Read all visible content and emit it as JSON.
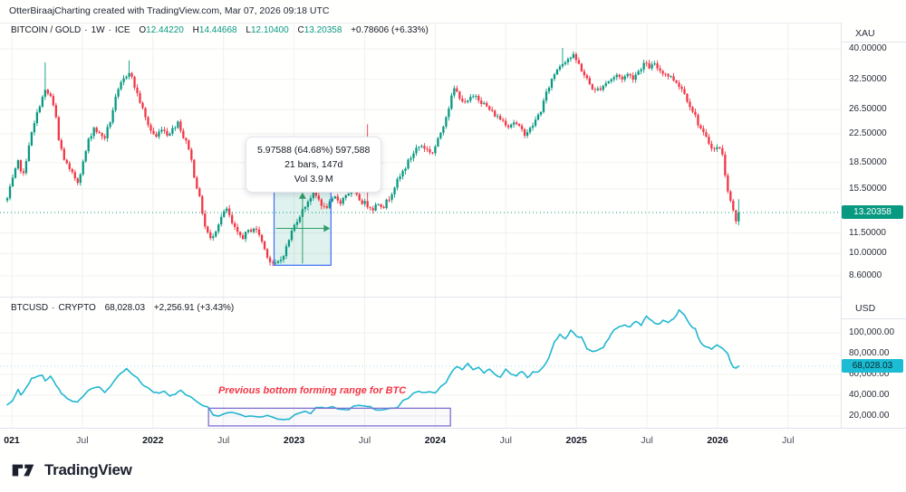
{
  "attribution": "OtterBiraajCharting created with TradingView.com, Mar 07, 2026 09:18 UTC",
  "top_pane": {
    "legend": {
      "symbol": "BITCOIN / GOLD",
      "sep": "·",
      "interval": "1W",
      "exchange": "ICE",
      "o_label": "O",
      "open": "12.44220",
      "h_label": "H",
      "high": "14.44668",
      "l_label": "L",
      "low": "12.10400",
      "c_label": "C",
      "close": "13.20358",
      "change": "+0.78606 (+6.33%)"
    },
    "unit": "XAU",
    "price_badge": "13.20358",
    "tooltip": {
      "line1": "5.97588 (64.68%) 597,588",
      "line2": "21 bars, 147d",
      "line3": "Vol 3.9 M"
    }
  },
  "bottom_pane": {
    "legend": {
      "symbol": "BTCUSD",
      "sep": "·",
      "exchange": "CRYPTO",
      "value": "68,028.03",
      "change": "+2,256.91 (+3.43%)"
    },
    "unit": "USD",
    "price_badge": "68,028.03",
    "annotation": "Previous bottom forming range for BTC"
  },
  "footer": {
    "logo_text": "TradingView"
  },
  "colors": {
    "up": "#089981",
    "down": "#f23645",
    "line": "#21b7d0",
    "grid": "#f1f0ec",
    "measure_fill": "rgba(8,153,129,0.13)",
    "measure_border": "#3b6ff7",
    "measure_arrow": "#2f9e68",
    "range_border": "#7e6fd0",
    "range_fill": "rgba(126,111,208,0.04)",
    "annotation_red": "#f23645",
    "badge_up_bg": "#089981",
    "badge_line_bg": "#1cbdd4"
  },
  "x_axis": {
    "ticks": [
      {
        "label": "021",
        "year": true
      },
      {
        "label": "Jul",
        "year": false
      },
      {
        "label": "2022",
        "year": true
      },
      {
        "label": "Jul",
        "year": false
      },
      {
        "label": "2023",
        "year": true
      },
      {
        "label": "Jul",
        "year": false
      },
      {
        "label": "2024",
        "year": true
      },
      {
        "label": "Jul",
        "year": false
      },
      {
        "label": "2025",
        "year": true
      },
      {
        "label": "Jul",
        "year": false
      },
      {
        "label": "2026",
        "year": true
      },
      {
        "label": "Jul",
        "year": false
      }
    ]
  },
  "chart_data": [
    {
      "type": "candlestick",
      "title": "BITCOIN / GOLD · 1W · ICE",
      "y_scale": "log",
      "y_axis_unit": "XAU",
      "x_range": [
        "2021-01",
        "2026-03"
      ],
      "ylim": [
        8.2,
        41.5
      ],
      "y_ticks": [
        40,
        32.5,
        26.5,
        22.5,
        18.5,
        15.5,
        11.5,
        10,
        8.6
      ],
      "y_tick_labels": [
        "40.00000",
        "32.50000",
        "26.50000",
        "22.50000",
        "18.50000",
        "15.50000",
        "11.50000",
        "10.00000",
        "8.60000"
      ],
      "last_price": 13.20358,
      "weeks": 271,
      "last": {
        "open": 12.4422,
        "high": 14.44668,
        "low": 12.104,
        "close": 13.20358
      },
      "close_keyframes": [
        [
          0,
          14.5
        ],
        [
          2,
          16.5
        ],
        [
          4,
          18.5
        ],
        [
          6,
          17.0
        ],
        [
          8,
          21.0
        ],
        [
          10,
          24.0
        ],
        [
          12,
          27.5
        ],
        [
          14,
          30.0
        ],
        [
          16,
          29.0
        ],
        [
          18,
          25.0
        ],
        [
          19,
          21.5
        ],
        [
          21,
          19.0
        ],
        [
          23,
          17.5
        ],
        [
          26,
          16.3
        ],
        [
          28,
          18.5
        ],
        [
          30,
          21.5
        ],
        [
          32,
          23.5
        ],
        [
          34,
          22.4
        ],
        [
          36,
          22.0
        ],
        [
          38,
          24.5
        ],
        [
          40,
          28.5
        ],
        [
          42,
          31.5
        ],
        [
          44,
          33.5
        ],
        [
          45,
          34.5
        ],
        [
          47,
          31.0
        ],
        [
          49,
          28.0
        ],
        [
          51,
          25.0
        ],
        [
          53,
          23.0
        ],
        [
          55,
          22.0
        ],
        [
          57,
          23.5
        ],
        [
          59,
          22.5
        ],
        [
          61,
          23.2
        ],
        [
          63,
          24.5
        ],
        [
          65,
          22.0
        ],
        [
          67,
          20.5
        ],
        [
          69,
          17.0
        ],
        [
          71,
          14.5
        ],
        [
          73,
          12.0
        ],
        [
          75,
          11.0
        ],
        [
          77,
          11.8
        ],
        [
          79,
          12.8
        ],
        [
          81,
          13.5
        ],
        [
          83,
          12.2
        ],
        [
          85,
          11.4
        ],
        [
          87,
          11.2
        ],
        [
          89,
          11.6
        ],
        [
          91,
          11.9
        ],
        [
          93,
          11.4
        ],
        [
          95,
          10.3
        ],
        [
          97,
          9.5
        ],
        [
          99,
          9.25
        ],
        [
          101,
          9.6
        ],
        [
          103,
          10.4
        ],
        [
          105,
          11.6
        ],
        [
          107,
          12.6
        ],
        [
          109,
          13.4
        ],
        [
          111,
          14.3
        ],
        [
          113,
          15.1
        ],
        [
          115,
          14.4
        ],
        [
          117,
          13.6
        ],
        [
          119,
          14.0
        ],
        [
          121,
          14.6
        ],
        [
          123,
          14.2
        ],
        [
          125,
          14.9
        ],
        [
          127,
          15.3
        ],
        [
          129,
          14.7
        ],
        [
          131,
          14.2
        ],
        [
          133,
          13.9
        ],
        [
          135,
          13.6
        ],
        [
          137,
          14.1
        ],
        [
          139,
          13.8
        ],
        [
          141,
          14.6
        ],
        [
          143,
          15.8
        ],
        [
          145,
          16.8
        ],
        [
          147,
          18.0
        ],
        [
          149,
          19.2
        ],
        [
          151,
          20.4
        ],
        [
          153,
          20.8
        ],
        [
          155,
          20.2
        ],
        [
          157,
          19.8
        ],
        [
          159,
          21.5
        ],
        [
          161,
          24.0
        ],
        [
          163,
          27.0
        ],
        [
          165,
          30.5
        ],
        [
          167,
          29.0
        ],
        [
          169,
          27.5
        ],
        [
          171,
          28.5
        ],
        [
          173,
          29.3
        ],
        [
          175,
          28.0
        ],
        [
          177,
          27.0
        ],
        [
          179,
          26.0
        ],
        [
          181,
          25.2
        ],
        [
          183,
          24.6
        ],
        [
          185,
          23.8
        ],
        [
          187,
          24.4
        ],
        [
          189,
          23.4
        ],
        [
          191,
          22.6
        ],
        [
          193,
          23.2
        ],
        [
          195,
          24.6
        ],
        [
          197,
          26.4
        ],
        [
          199,
          29.5
        ],
        [
          201,
          32.5
        ],
        [
          203,
          35.0
        ],
        [
          205,
          36.5
        ],
        [
          207,
          37.5
        ],
        [
          209,
          38.0
        ],
        [
          211,
          36.0
        ],
        [
          213,
          33.5
        ],
        [
          215,
          31.5
        ],
        [
          217,
          30.0
        ],
        [
          219,
          30.8
        ],
        [
          221,
          31.8
        ],
        [
          223,
          32.6
        ],
        [
          225,
          33.4
        ],
        [
          227,
          32.8
        ],
        [
          229,
          33.6
        ],
        [
          231,
          33.0
        ],
        [
          233,
          34.4
        ],
        [
          235,
          36.2
        ],
        [
          237,
          35.4
        ],
        [
          239,
          35.8
        ],
        [
          241,
          34.6
        ],
        [
          243,
          33.8
        ],
        [
          245,
          33.0
        ],
        [
          247,
          32.0
        ],
        [
          249,
          30.6
        ],
        [
          251,
          28.4
        ],
        [
          253,
          26.4
        ],
        [
          255,
          24.2
        ],
        [
          257,
          22.4
        ],
        [
          259,
          21.2
        ],
        [
          261,
          20.2
        ],
        [
          263,
          20.6
        ],
        [
          264,
          19.4
        ],
        [
          265,
          17.2
        ],
        [
          266,
          15.4
        ],
        [
          267,
          14.2
        ],
        [
          268,
          13.4
        ],
        [
          269,
          12.44
        ],
        [
          270,
          13.2
        ]
      ],
      "spikes": [
        {
          "week": 14,
          "high": 36.5,
          "down": false
        },
        {
          "week": 45,
          "high": 37.0,
          "down": false
        },
        {
          "week": 133,
          "high": 24.0,
          "down": true
        },
        {
          "week": 205,
          "high": 40.2,
          "down": false
        }
      ],
      "measure_tool": {
        "from_week": 98.5,
        "to_week": 119.5,
        "low": 9.24,
        "high": 15.22,
        "bars": 21,
        "days": 147,
        "diff": 5.97588,
        "pct": "64.68%",
        "abs": "597,588",
        "volume": "3.9M"
      }
    },
    {
      "type": "line",
      "title": "BTCUSD · CRYPTO",
      "y_scale": "linear",
      "y_axis_unit": "USD",
      "x_range": [
        "2021-01",
        "2026-03"
      ],
      "ylim_k": [
        9,
        135
      ],
      "y_ticks_k": [
        100,
        80,
        60,
        40,
        20
      ],
      "y_tick_labels": [
        "100,000.00",
        "80,000.00",
        "60,000.00",
        "40,000.00",
        "20,000.00"
      ],
      "last_price": 68028.03,
      "weeks": 271,
      "values_keyframes_k": [
        [
          0,
          31
        ],
        [
          2,
          35
        ],
        [
          4,
          46
        ],
        [
          5,
          40
        ],
        [
          7,
          47
        ],
        [
          9,
          56
        ],
        [
          11,
          58
        ],
        [
          13,
          59
        ],
        [
          14,
          54
        ],
        [
          16,
          58
        ],
        [
          18,
          50
        ],
        [
          20,
          42
        ],
        [
          22,
          37
        ],
        [
          24,
          34
        ],
        [
          26,
          33.5
        ],
        [
          28,
          39
        ],
        [
          30,
          45
        ],
        [
          32,
          47
        ],
        [
          34,
          48
        ],
        [
          36,
          43
        ],
        [
          38,
          48
        ],
        [
          40,
          56
        ],
        [
          42,
          61
        ],
        [
          44,
          65
        ],
        [
          46,
          60
        ],
        [
          48,
          57
        ],
        [
          50,
          50
        ],
        [
          52,
          47
        ],
        [
          54,
          43
        ],
        [
          56,
          42
        ],
        [
          58,
          44
        ],
        [
          60,
          39
        ],
        [
          62,
          41
        ],
        [
          64,
          45
        ],
        [
          66,
          40
        ],
        [
          68,
          38
        ],
        [
          70,
          34
        ],
        [
          72,
          30
        ],
        [
          74,
          29
        ],
        [
          76,
          21
        ],
        [
          78,
          20
        ],
        [
          80,
          22
        ],
        [
          82,
          23.5
        ],
        [
          84,
          23
        ],
        [
          86,
          21.5
        ],
        [
          88,
          19.5
        ],
        [
          90,
          20
        ],
        [
          92,
          19.5
        ],
        [
          94,
          19
        ],
        [
          96,
          20.5
        ],
        [
          98,
          19
        ],
        [
          100,
          16.8
        ],
        [
          102,
          16.6
        ],
        [
          104,
          17
        ],
        [
          106,
          21
        ],
        [
          108,
          23
        ],
        [
          110,
          24.5
        ],
        [
          112,
          22.5
        ],
        [
          114,
          28
        ],
        [
          116,
          28.5
        ],
        [
          118,
          27.5
        ],
        [
          120,
          29
        ],
        [
          122,
          27
        ],
        [
          124,
          26.5
        ],
        [
          126,
          26
        ],
        [
          128,
          30
        ],
        [
          130,
          30.5
        ],
        [
          132,
          29.5
        ],
        [
          134,
          29
        ],
        [
          136,
          26
        ],
        [
          138,
          26
        ],
        [
          140,
          26.5
        ],
        [
          142,
          27.5
        ],
        [
          144,
          28
        ],
        [
          146,
          34.5
        ],
        [
          148,
          37
        ],
        [
          150,
          42
        ],
        [
          152,
          43.5
        ],
        [
          154,
          42.5
        ],
        [
          156,
          43
        ],
        [
          158,
          42
        ],
        [
          160,
          48
        ],
        [
          162,
          52
        ],
        [
          164,
          62
        ],
        [
          166,
          68
        ],
        [
          168,
          65
        ],
        [
          170,
          70
        ],
        [
          172,
          64
        ],
        [
          174,
          67
        ],
        [
          176,
          61.5
        ],
        [
          178,
          65
        ],
        [
          180,
          60
        ],
        [
          182,
          57
        ],
        [
          184,
          65
        ],
        [
          186,
          60
        ],
        [
          188,
          59
        ],
        [
          190,
          63
        ],
        [
          192,
          57
        ],
        [
          194,
          62
        ],
        [
          196,
          63
        ],
        [
          198,
          67
        ],
        [
          200,
          76
        ],
        [
          202,
          92
        ],
        [
          204,
          98
        ],
        [
          206,
          95
        ],
        [
          208,
          102
        ],
        [
          210,
          97
        ],
        [
          212,
          96
        ],
        [
          214,
          85
        ],
        [
          216,
          82
        ],
        [
          218,
          84
        ],
        [
          220,
          85
        ],
        [
          222,
          95
        ],
        [
          224,
          104
        ],
        [
          226,
          105
        ],
        [
          228,
          108
        ],
        [
          230,
          106
        ],
        [
          232,
          110
        ],
        [
          234,
          108
        ],
        [
          236,
          116
        ],
        [
          238,
          112
        ],
        [
          240,
          108
        ],
        [
          242,
          112
        ],
        [
          244,
          110
        ],
        [
          246,
          113
        ],
        [
          248,
          121
        ],
        [
          250,
          117
        ],
        [
          252,
          108
        ],
        [
          254,
          103
        ],
        [
          256,
          90
        ],
        [
          258,
          87
        ],
        [
          260,
          85
        ],
        [
          262,
          88
        ],
        [
          264,
          86
        ],
        [
          266,
          80
        ],
        [
          267,
          72
        ],
        [
          268,
          67
        ],
        [
          269,
          66
        ],
        [
          270,
          68.02803
        ]
      ],
      "range_box": {
        "from_week": 74.3,
        "to_week": 163.6,
        "top_value_k": 27.5,
        "bottom_value_k": 10.5
      }
    }
  ]
}
